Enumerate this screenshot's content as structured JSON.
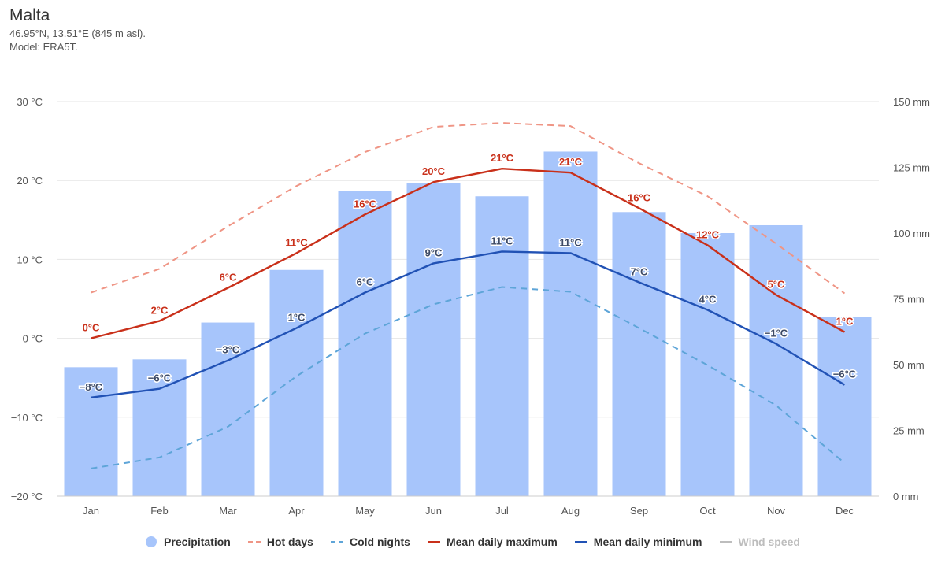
{
  "header": {
    "title": "Malta",
    "coords": "46.95°N, 13.51°E (845 m asl).",
    "model": "Model: ERA5T."
  },
  "colors": {
    "precipitation": "#a7c5fb",
    "hot_days": "#ef9585",
    "cold_nights": "#5ea5d8",
    "mean_max": "#c9301a",
    "mean_min": "#2152b5",
    "wind_speed": "#bdbdbd",
    "grid": "#e6e6e6"
  },
  "legend": [
    {
      "name": "Precipitation",
      "symbol": "dot",
      "color": "#a7c5fb",
      "active": true
    },
    {
      "name": "Hot days",
      "symbol": "dash",
      "color": "#ef9585",
      "active": true
    },
    {
      "name": "Cold nights",
      "symbol": "dash",
      "color": "#5ea5d8",
      "active": true
    },
    {
      "name": "Mean daily maximum",
      "symbol": "line",
      "color": "#c9301a",
      "active": true
    },
    {
      "name": "Mean daily minimum",
      "symbol": "line",
      "color": "#2152b5",
      "active": true
    },
    {
      "name": "Wind speed",
      "symbol": "line",
      "color": "#bdbdbd",
      "active": false
    }
  ],
  "chart_data": {
    "type": "bar",
    "categories": [
      "Jan",
      "Feb",
      "Mar",
      "Apr",
      "May",
      "Jun",
      "Jul",
      "Aug",
      "Sep",
      "Oct",
      "Nov",
      "Dec"
    ],
    "y_left": {
      "min": -20,
      "max": 30,
      "ticks": [
        -20,
        -10,
        0,
        10,
        20,
        30
      ],
      "tick_labels": [
        "−20 °C",
        "−10 °C",
        "0 °C",
        "10 °C",
        "20 °C",
        "30 °C"
      ]
    },
    "y_right": {
      "min": 0,
      "max": 150,
      "ticks": [
        0,
        25,
        50,
        75,
        100,
        125,
        150
      ],
      "tick_labels": [
        "0 mm",
        "25 mm",
        "50 mm",
        "75 mm",
        "100 mm",
        "125 mm",
        "150 mm"
      ]
    },
    "grid": true,
    "legend_position": "bottom",
    "series": [
      {
        "name": "Precipitation",
        "type": "bar",
        "axis": "right",
        "values": [
          49,
          52,
          66,
          86,
          116,
          119,
          114,
          131,
          108,
          100,
          103,
          68
        ]
      },
      {
        "name": "Hot days",
        "type": "dashed-line",
        "axis": "left",
        "values": [
          5.8,
          8.8,
          14.2,
          19.3,
          23.6,
          26.8,
          27.3,
          26.9,
          22.2,
          18.0,
          12.0,
          5.7
        ]
      },
      {
        "name": "Cold nights",
        "type": "dashed-line",
        "axis": "left",
        "values": [
          -16.5,
          -15.1,
          -11.2,
          -4.8,
          0.6,
          4.3,
          6.5,
          5.9,
          1.3,
          -3.4,
          -8.5,
          -15.8
        ]
      },
      {
        "name": "Mean daily maximum",
        "type": "line",
        "axis": "left",
        "values": [
          0,
          2.2,
          6.4,
          10.8,
          15.7,
          19.8,
          21.5,
          21.0,
          16.5,
          11.8,
          5.5,
          0.8
        ],
        "labels": [
          "0°C",
          "2°C",
          "6°C",
          "11°C",
          "16°C",
          "20°C",
          "21°C",
          "21°C",
          "16°C",
          "12°C",
          "5°C",
          "1°C"
        ]
      },
      {
        "name": "Mean daily minimum",
        "type": "line",
        "axis": "left",
        "values": [
          -7.5,
          -6.4,
          -2.8,
          1.3,
          5.8,
          9.5,
          11.0,
          10.8,
          7.1,
          3.6,
          -0.7,
          -5.9
        ],
        "labels": [
          "−8°C",
          "−6°C",
          "−3°C",
          "1°C",
          "6°C",
          "9°C",
          "11°C",
          "11°C",
          "7°C",
          "4°C",
          "−1°C",
          "−6°C"
        ]
      }
    ]
  }
}
